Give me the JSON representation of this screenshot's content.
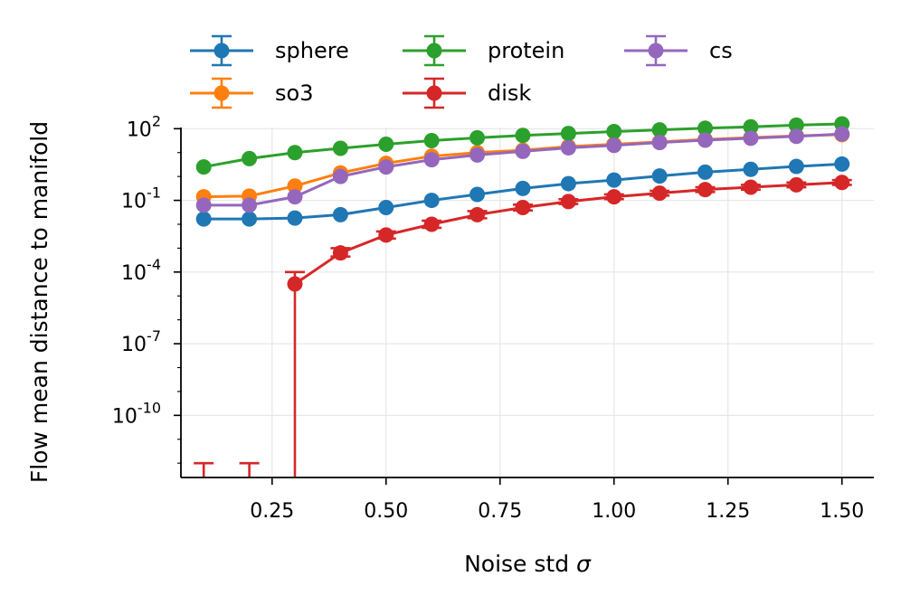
{
  "chart_data": {
    "type": "line",
    "title": "",
    "xlabel": "Noise std",
    "xlabel_symbol": "σ",
    "ylabel": "Flow mean distance to manifold",
    "yscale": "log",
    "xlim": [
      0.05,
      1.57
    ],
    "ylim_exp": [
      -12.6,
      2.05
    ],
    "x_ticks": [
      0.25,
      0.5,
      0.75,
      1.0,
      1.25,
      1.5
    ],
    "x_tick_labels": [
      "0.25",
      "0.50",
      "0.75",
      "1.00",
      "1.25",
      "1.50"
    ],
    "y_ticks_exp": [
      2,
      -1,
      -4,
      -7,
      -10
    ],
    "y_tick_labels": [
      "2",
      "-1",
      "-4",
      "-7",
      "-10"
    ],
    "y_tick_base": "10",
    "grid": true,
    "legend_position": "top",
    "x": [
      0.1,
      0.2,
      0.3,
      0.4,
      0.5,
      0.6,
      0.7,
      0.8,
      0.9,
      1.0,
      1.1,
      1.2,
      1.3,
      1.4,
      1.5
    ],
    "series": [
      {
        "name": "sphere",
        "color": "#1f77b4",
        "log10_values": [
          -1.78,
          -1.78,
          -1.74,
          -1.6,
          -1.3,
          -1.0,
          -0.75,
          -0.5,
          -0.3,
          -0.15,
          0.02,
          0.18,
          0.3,
          0.42,
          0.52
        ]
      },
      {
        "name": "so3",
        "color": "#ff7f0e",
        "log10_values": [
          -0.85,
          -0.82,
          -0.4,
          0.15,
          0.55,
          0.85,
          1.0,
          1.1,
          1.25,
          1.35,
          1.45,
          1.55,
          1.63,
          1.7,
          1.75
        ]
      },
      {
        "name": "protein",
        "color": "#2ca02c",
        "log10_values": [
          0.4,
          0.75,
          1.0,
          1.18,
          1.35,
          1.5,
          1.62,
          1.72,
          1.8,
          1.88,
          1.95,
          2.02,
          2.08,
          2.15,
          2.2
        ]
      },
      {
        "name": "disk",
        "color": "#d62728",
        "log10_values": [
          null,
          null,
          -4.5,
          -3.2,
          -2.45,
          -2.0,
          -1.6,
          -1.3,
          -1.05,
          -0.85,
          -0.7,
          -0.55,
          -0.45,
          -0.35,
          -0.25
        ],
        "err_low_exp": [
          -12.6,
          -12.6,
          -12.6,
          -3.35,
          -2.6,
          -2.15,
          -1.75,
          -1.42,
          -1.15,
          -0.95,
          -0.8,
          -0.65,
          -0.55,
          -0.45,
          -0.35
        ],
        "err_high_exp": [
          -12.0,
          -12.0,
          -4.0,
          -3.0,
          -2.3,
          -1.85,
          -1.45,
          -1.18,
          -0.95,
          -0.75,
          -0.6,
          -0.45,
          -0.35,
          -0.25,
          -0.15
        ]
      },
      {
        "name": "cs",
        "color": "#9467bd",
        "log10_values": [
          -1.2,
          -1.2,
          -0.85,
          0.0,
          0.4,
          0.7,
          0.9,
          1.05,
          1.2,
          1.3,
          1.42,
          1.52,
          1.6,
          1.68,
          1.78
        ]
      }
    ]
  }
}
